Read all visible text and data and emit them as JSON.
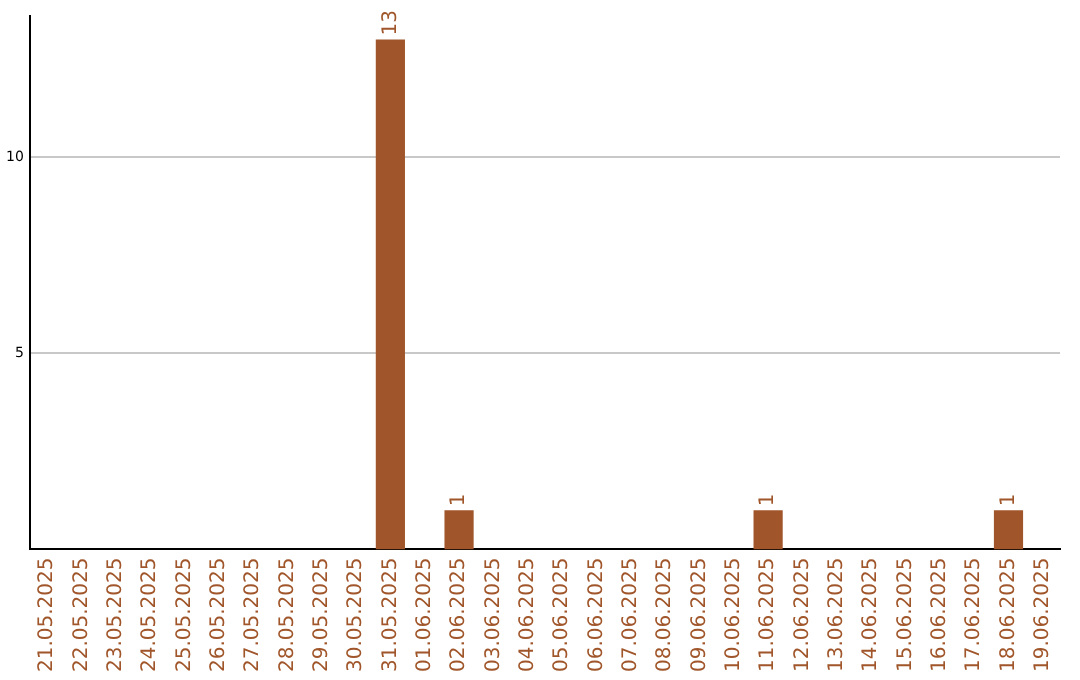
{
  "chart_data": {
    "type": "bar",
    "categories": [
      "21.05.2025",
      "22.05.2025",
      "23.05.2025",
      "24.05.2025",
      "25.05.2025",
      "26.05.2025",
      "27.05.2025",
      "28.05.2025",
      "29.05.2025",
      "30.05.2025",
      "31.05.2025",
      "01.06.2025",
      "02.06.2025",
      "03.06.2025",
      "04.06.2025",
      "05.06.2025",
      "06.06.2025",
      "07.06.2025",
      "08.06.2025",
      "09.06.2025",
      "10.06.2025",
      "11.06.2025",
      "12.06.2025",
      "13.06.2025",
      "14.06.2025",
      "15.06.2025",
      "16.06.2025",
      "17.06.2025",
      "18.06.2025",
      "19.06.2025"
    ],
    "values": [
      0,
      0,
      0,
      0,
      0,
      0,
      0,
      0,
      0,
      0,
      13,
      0,
      1,
      0,
      0,
      0,
      0,
      0,
      0,
      0,
      0,
      1,
      0,
      0,
      0,
      0,
      0,
      0,
      1,
      0
    ],
    "value_labels": [
      null,
      null,
      null,
      null,
      null,
      null,
      null,
      null,
      null,
      null,
      "13",
      null,
      "1",
      null,
      null,
      null,
      null,
      null,
      null,
      null,
      null,
      "1",
      null,
      null,
      null,
      null,
      null,
      null,
      "1",
      null
    ],
    "color": "#a0562a",
    "ylim": [
      0,
      13.6
    ],
    "yticks": [
      5,
      10
    ],
    "grid": "y"
  }
}
